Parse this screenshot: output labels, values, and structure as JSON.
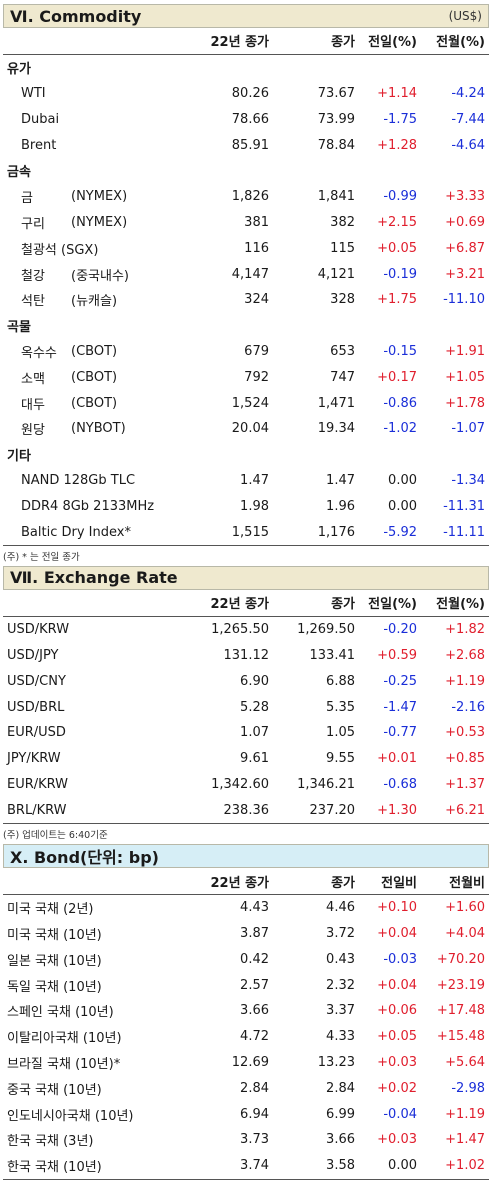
{
  "commodity": {
    "title": "Ⅵ. Commodity",
    "unit": "(US$)",
    "headers": {
      "prev": "22년 종가",
      "close": "종가",
      "dd": "전일(%)",
      "dm": "전월(%)"
    },
    "groups": [
      {
        "label": "유가",
        "items": [
          {
            "name": "WTI",
            "sub": "",
            "prev": "80.26",
            "close": "73.67",
            "dd": "+1.14",
            "dm": "-4.24"
          },
          {
            "name": "Dubai",
            "sub": "",
            "prev": "78.66",
            "close": "73.99",
            "dd": "-1.75",
            "dm": "-7.44"
          },
          {
            "name": "Brent",
            "sub": "",
            "prev": "85.91",
            "close": "78.84",
            "dd": "+1.28",
            "dm": "-4.64"
          }
        ]
      },
      {
        "label": "금속",
        "items": [
          {
            "name": "금",
            "sub": "(NYMEX)",
            "prev": "1,826",
            "close": "1,841",
            "dd": "-0.99",
            "dm": "+3.33"
          },
          {
            "name": "구리",
            "sub": "(NYMEX)",
            "prev": "381",
            "close": "382",
            "dd": "+2.15",
            "dm": "+0.69"
          },
          {
            "name": "철광석 (SGX)",
            "sub": "",
            "prev": "116",
            "close": "115",
            "dd": "+0.05",
            "dm": "+6.87"
          },
          {
            "name": "철강",
            "sub": "(중국내수)",
            "prev": "4,147",
            "close": "4,121",
            "dd": "-0.19",
            "dm": "+3.21"
          },
          {
            "name": "석탄",
            "sub": "(뉴캐슬)",
            "prev": "324",
            "close": "328",
            "dd": "+1.75",
            "dm": "-11.10"
          }
        ]
      },
      {
        "label": "곡물",
        "items": [
          {
            "name": "옥수수",
            "sub": "(CBOT)",
            "prev": "679",
            "close": "653",
            "dd": "-0.15",
            "dm": "+1.91"
          },
          {
            "name": "소맥",
            "sub": "(CBOT)",
            "prev": "792",
            "close": "747",
            "dd": "+0.17",
            "dm": "+1.05"
          },
          {
            "name": "대두",
            "sub": "(CBOT)",
            "prev": "1,524",
            "close": "1,471",
            "dd": "-0.86",
            "dm": "+1.78"
          },
          {
            "name": "원당",
            "sub": "(NYBOT)",
            "prev": "20.04",
            "close": "19.34",
            "dd": "-1.02",
            "dm": "-1.07"
          }
        ]
      },
      {
        "label": "기타",
        "items": [
          {
            "name": "NAND 128Gb TLC",
            "sub": "",
            "prev": "1.47",
            "close": "1.47",
            "dd": "0.00",
            "dm": "-1.34"
          },
          {
            "name": "DDR4 8Gb 2133MHz",
            "sub": "",
            "prev": "1.98",
            "close": "1.96",
            "dd": "0.00",
            "dm": "-11.31"
          },
          {
            "name": "Baltic Dry Index*",
            "sub": "",
            "prev": "1,515",
            "close": "1,176",
            "dd": "-5.92",
            "dm": "-11.11"
          }
        ]
      }
    ],
    "note": "(주) * 는 전일 종가"
  },
  "exchange": {
    "title": "Ⅶ. Exchange Rate",
    "headers": {
      "prev": "22년 종가",
      "close": "종가",
      "dd": "전일(%)",
      "dm": "전월(%)"
    },
    "rows": [
      {
        "name": "USD/KRW",
        "prev": "1,265.50",
        "close": "1,269.50",
        "dd": "-0.20",
        "dm": "+1.82"
      },
      {
        "name": "USD/JPY",
        "prev": "131.12",
        "close": "133.41",
        "dd": "+0.59",
        "dm": "+2.68"
      },
      {
        "name": "USD/CNY",
        "prev": "6.90",
        "close": "6.88",
        "dd": "-0.25",
        "dm": "+1.19"
      },
      {
        "name": "USD/BRL",
        "prev": "5.28",
        "close": "5.35",
        "dd": "-1.47",
        "dm": "-2.16"
      },
      {
        "name": "EUR/USD",
        "prev": "1.07",
        "close": "1.05",
        "dd": "-0.77",
        "dm": "+0.53"
      },
      {
        "name": "JPY/KRW",
        "prev": "9.61",
        "close": "9.55",
        "dd": "+0.01",
        "dm": "+0.85"
      },
      {
        "name": "EUR/KRW",
        "prev": "1,342.60",
        "close": "1,346.21",
        "dd": "-0.68",
        "dm": "+1.37"
      },
      {
        "name": "BRL/KRW",
        "prev": "238.36",
        "close": "237.20",
        "dd": "+1.30",
        "dm": "+6.21"
      }
    ],
    "note": "(주) 업데이트는 6:40기준"
  },
  "bond": {
    "title": "Ⅹ. Bond(단위: bp)",
    "headers": {
      "prev": "22년 종가",
      "close": "종가",
      "dd": "전일비",
      "dm": "전월비"
    },
    "rows": [
      {
        "name": "미국 국채 (2년)",
        "prev": "4.43",
        "close": "4.46",
        "dd": "+0.10",
        "dm": "+1.60"
      },
      {
        "name": "미국 국채 (10년)",
        "prev": "3.87",
        "close": "3.72",
        "dd": "+0.04",
        "dm": "+4.04"
      },
      {
        "name": "일본 국채 (10년)",
        "prev": "0.42",
        "close": "0.43",
        "dd": "-0.03",
        "dm": "+70.20"
      },
      {
        "name": "독일 국채 (10년)",
        "prev": "2.57",
        "close": "2.32",
        "dd": "+0.04",
        "dm": "+23.19"
      },
      {
        "name": "스페인 국채 (10년)",
        "prev": "3.66",
        "close": "3.37",
        "dd": "+0.06",
        "dm": "+17.48"
      },
      {
        "name": "이탈리아국채 (10년)",
        "prev": "4.72",
        "close": "4.33",
        "dd": "+0.05",
        "dm": "+15.48"
      },
      {
        "name": "브라질 국채 (10년)*",
        "prev": "12.69",
        "close": "13.23",
        "dd": "+0.03",
        "dm": "+5.64"
      },
      {
        "name": "중국 국채 (10년)",
        "prev": "2.84",
        "close": "2.84",
        "dd": "+0.02",
        "dm": "-2.98"
      },
      {
        "name": "인도네시아국채 (10년)",
        "prev": "6.94",
        "close": "6.99",
        "dd": "-0.04",
        "dm": "+1.19"
      },
      {
        "name": "한국 국채 (3년)",
        "prev": "3.73",
        "close": "3.66",
        "dd": "+0.03",
        "dm": "+1.47"
      },
      {
        "name": "한국 국채 (10년)",
        "prev": "3.74",
        "close": "3.58",
        "dd": "0.00",
        "dm": "+1.02"
      }
    ]
  },
  "colors": {
    "positive": "#e01e2d",
    "negative": "#1a2ed8",
    "beige_header": "#efe9cf",
    "blue_header": "#d6eef6"
  }
}
